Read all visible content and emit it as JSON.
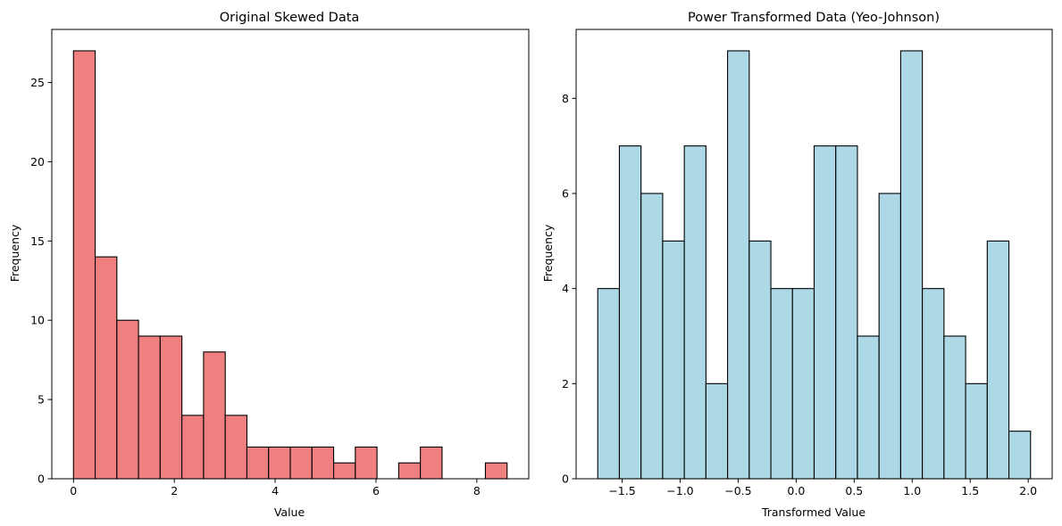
{
  "chart_data": [
    {
      "type": "bar",
      "title": "Original Skewed Data",
      "xlabel": "Value",
      "ylabel": "Frequency",
      "bin_edges": [
        0.0,
        0.43,
        0.86,
        1.29,
        1.72,
        2.15,
        2.58,
        3.01,
        3.44,
        3.87,
        4.3,
        4.73,
        5.16,
        5.59,
        6.02,
        6.45,
        6.88,
        7.31,
        7.74,
        8.17,
        8.6
      ],
      "values": [
        27,
        14,
        10,
        9,
        9,
        4,
        8,
        4,
        2,
        2,
        2,
        2,
        1,
        2,
        0,
        1,
        2,
        0,
        0,
        1
      ],
      "xlim": [
        -0.43,
        9.03
      ],
      "ylim": [
        0,
        28.35
      ],
      "xticks": [
        0,
        2,
        4,
        6,
        8
      ],
      "xtick_labels": [
        "0",
        "2",
        "4",
        "6",
        "8"
      ],
      "yticks": [
        0,
        5,
        10,
        15,
        20,
        25
      ],
      "ytick_labels": [
        "0",
        "5",
        "10",
        "15",
        "20",
        "25"
      ],
      "bar_color": "#f08080",
      "edge_color": "#000000",
      "grid": false
    },
    {
      "type": "bar",
      "title": "Power Transformed Data (Yeo-Johnson)",
      "xlabel": "Transformed Value",
      "ylabel": "Frequency",
      "bin_edges": [
        -1.71,
        -1.5235,
        -1.337,
        -1.1505,
        -0.964,
        -0.7775,
        -0.591,
        -0.4045,
        -0.218,
        -0.0315,
        0.155,
        0.3415,
        0.528,
        0.7145,
        0.901,
        1.0875,
        1.274,
        1.4605,
        1.647,
        1.8335,
        2.02
      ],
      "values": [
        4,
        7,
        6,
        5,
        7,
        2,
        9,
        5,
        4,
        4,
        7,
        7,
        3,
        6,
        9,
        4,
        3,
        2,
        5,
        1
      ],
      "xlim": [
        -1.8965,
        2.2065
      ],
      "ylim": [
        0,
        9.45
      ],
      "xticks": [
        -1.5,
        -1.0,
        -0.5,
        0.0,
        0.5,
        1.0,
        1.5,
        2.0
      ],
      "xtick_labels": [
        "−1.5",
        "−1.0",
        "−0.5",
        "0.0",
        "0.5",
        "1.0",
        "1.5",
        "2.0"
      ],
      "yticks": [
        0,
        2,
        4,
        6,
        8
      ],
      "ytick_labels": [
        "0",
        "2",
        "4",
        "6",
        "8"
      ],
      "bar_color": "#add8e6",
      "edge_color": "#000000",
      "grid": false
    }
  ]
}
